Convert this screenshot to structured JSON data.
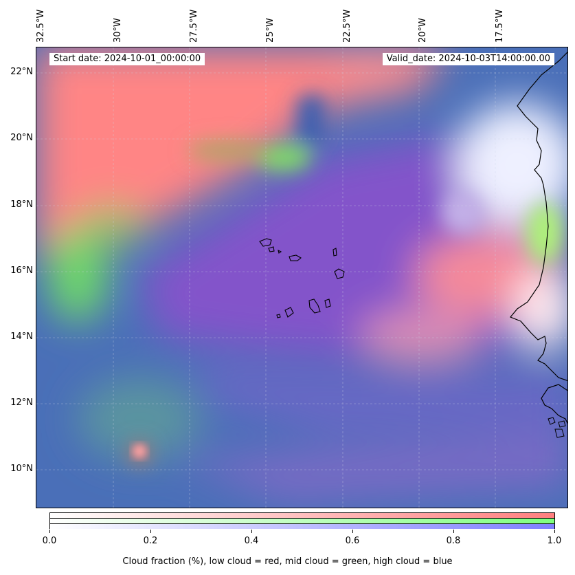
{
  "map": {
    "start_date": "Start date: 2024-10-01_00:00:00",
    "valid_date": "Valid_date: 2024-10-03T14:00:00.00",
    "lon_labels": [
      "32.5°W",
      "30°W",
      "27.5°W",
      "25°W",
      "22.5°W",
      "20°W",
      "17.5°W"
    ],
    "lat_labels": [
      "22°N",
      "20°N",
      "18°N",
      "16°N",
      "14°N",
      "12°N",
      "10°N"
    ]
  },
  "colorbar": {
    "ticks": [
      "0.0",
      "0.2",
      "0.4",
      "0.6",
      "0.8",
      "1.0"
    ],
    "caption": "Cloud fraction (%), low cloud = red, mid cloud = green, high cloud = blue",
    "colors": {
      "low": "#ff7f7f",
      "mid": "#7fff7f",
      "high": "#7f7fff"
    }
  }
}
